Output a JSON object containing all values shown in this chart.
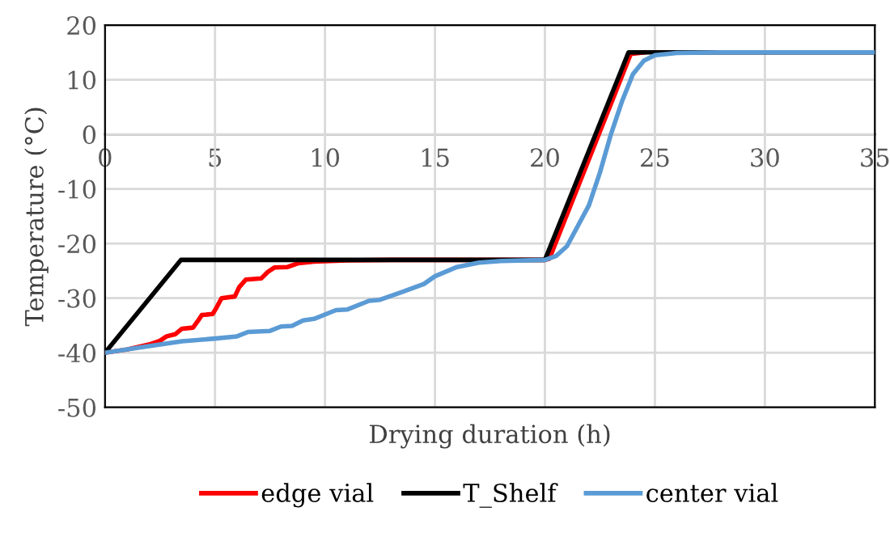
{
  "chart_data": {
    "type": "line",
    "xlabel": "Drying duration (h)",
    "ylabel": "Temperature (°C)",
    "xlim": [
      0,
      35
    ],
    "xticks": [
      0,
      5,
      10,
      15,
      20,
      25,
      30,
      35
    ],
    "ylim": [
      -50,
      20
    ],
    "yticks": [
      -50,
      -40,
      -30,
      -20,
      -10,
      0,
      10,
      20
    ],
    "grid": true,
    "legend": "bottom",
    "marker": "none",
    "line_style": "solid",
    "series": [
      {
        "name": "edge vial",
        "color": "#ff0000",
        "x": [
          0,
          1,
          2,
          2.5,
          2.8,
          3.2,
          3.5,
          4.0,
          4.2,
          4.4,
          4.9,
          5.1,
          5.3,
          5.9,
          6.1,
          6.4,
          7.1,
          7.4,
          7.7,
          8.3,
          8.8,
          9.5,
          11,
          13,
          20,
          20.2,
          23.9,
          24.5
        ],
        "values": [
          -40,
          -39.4,
          -38.5,
          -37.8,
          -37,
          -36.6,
          -35.6,
          -35.4,
          -34.3,
          -33.1,
          -32.9,
          -31.5,
          -30,
          -29.7,
          -28,
          -26.6,
          -26.4,
          -25.2,
          -24.4,
          -24.3,
          -23.6,
          -23.3,
          -23.1,
          -23,
          -23,
          -22.8,
          14.7,
          15
        ]
      },
      {
        "name": "T_Shelf",
        "color": "#000000",
        "x": [
          0,
          3.45,
          20,
          23.8,
          35
        ],
        "values": [
          -40,
          -23,
          -23,
          15,
          15
        ]
      },
      {
        "name": "center vial",
        "color": "#5b9bd5",
        "x": [
          0,
          2,
          3.5,
          5,
          6,
          6.5,
          7.5,
          8,
          8.5,
          9,
          9.5,
          10.5,
          11,
          12,
          12.5,
          13.5,
          14.5,
          15,
          16,
          17,
          18,
          20,
          20.5,
          21,
          22,
          22.5,
          23,
          23.5,
          24,
          24.5,
          25,
          26,
          28,
          35
        ],
        "values": [
          -40,
          -38.8,
          -37.9,
          -37.4,
          -37,
          -36.2,
          -36,
          -35.2,
          -35.1,
          -34.1,
          -33.8,
          -32.2,
          -32.1,
          -30.5,
          -30.3,
          -28.9,
          -27.4,
          -26,
          -24.3,
          -23.5,
          -23.2,
          -23,
          -22.3,
          -20.5,
          -13,
          -7,
          0,
          6,
          11,
          13.5,
          14.5,
          14.9,
          15,
          15
        ]
      }
    ]
  }
}
